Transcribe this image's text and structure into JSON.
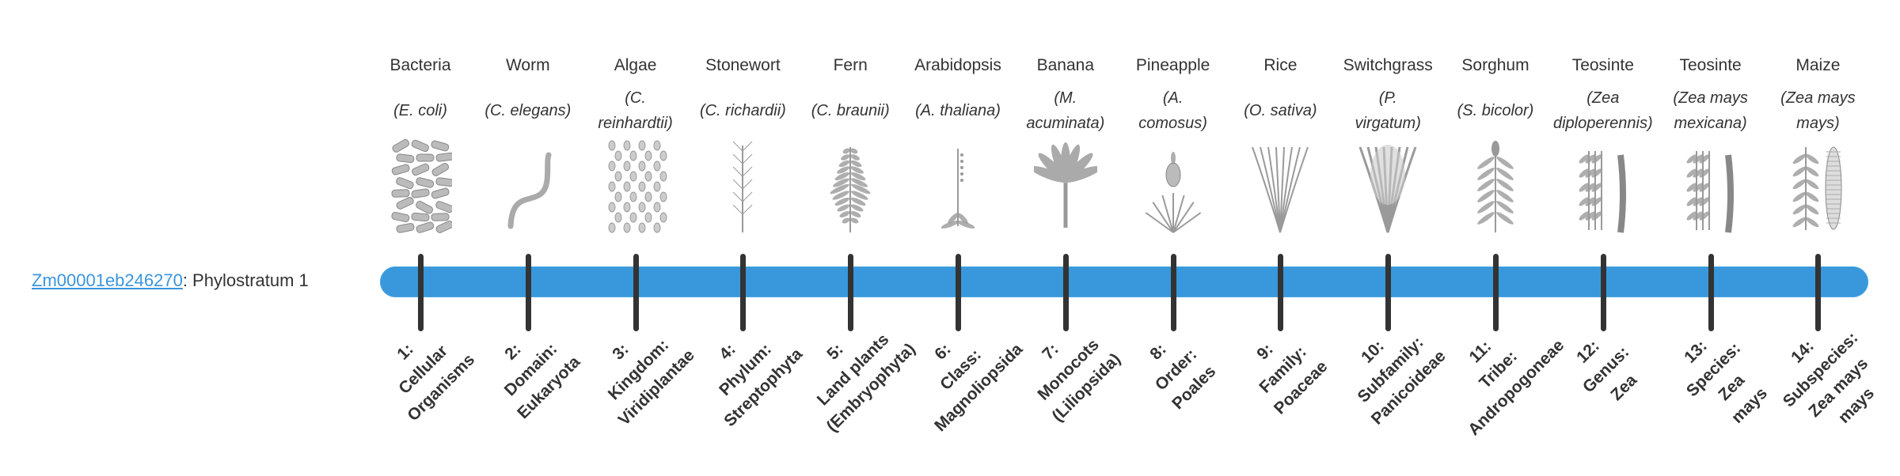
{
  "gene": {
    "id_link": "Zm00001eb246270",
    "suffix": ": Phylostratum 1"
  },
  "colors": {
    "bar": "#3898db",
    "tick": "#333333",
    "link": "#3a95dc",
    "illustration": "#9a9a9a"
  },
  "organisms": [
    {
      "name": "Bacteria",
      "sci": [
        "(E. coli)"
      ],
      "icon": "bacteria-icon"
    },
    {
      "name": "Worm",
      "sci": [
        "(C. elegans)"
      ],
      "icon": "worm-icon"
    },
    {
      "name": "Algae",
      "sci": [
        "(C.",
        "reinhardtii)"
      ],
      "icon": "algae-icon"
    },
    {
      "name": "Stonewort",
      "sci": [
        "(C. richardii)"
      ],
      "icon": "stonewort-icon"
    },
    {
      "name": "Fern",
      "sci": [
        "(C. braunii)"
      ],
      "icon": "fern-icon"
    },
    {
      "name": "Arabidopsis",
      "sci": [
        "(A. thaliana)"
      ],
      "icon": "arabidopsis-icon"
    },
    {
      "name": "Banana",
      "sci": [
        "(M.",
        "acuminata)"
      ],
      "icon": "banana-icon"
    },
    {
      "name": "Pineapple",
      "sci": [
        "(A.",
        "comosus)"
      ],
      "icon": "pineapple-icon"
    },
    {
      "name": "Rice",
      "sci": [
        "(O. sativa)"
      ],
      "icon": "rice-icon"
    },
    {
      "name": "Switchgrass",
      "sci": [
        "(P.",
        "virgatum)"
      ],
      "icon": "switchgrass-icon"
    },
    {
      "name": "Sorghum",
      "sci": [
        "(S. bicolor)"
      ],
      "icon": "sorghum-icon"
    },
    {
      "name": "Teosinte",
      "sci": [
        "(Zea",
        "diploperennis)"
      ],
      "icon": "teosinte-icon"
    },
    {
      "name": "Teosinte",
      "sci": [
        "(Zea mays",
        "mexicana)"
      ],
      "icon": "teosinte-icon"
    },
    {
      "name": "Maize",
      "sci": [
        "(Zea mays",
        "mays)"
      ],
      "icon": "maize-icon"
    }
  ],
  "strata": [
    {
      "lines": [
        "1:",
        "Cellular",
        "Organisms"
      ]
    },
    {
      "lines": [
        "2:",
        "Domain:",
        "Eukaryota"
      ]
    },
    {
      "lines": [
        "3:",
        "Kingdom:",
        "Viridiplantae"
      ]
    },
    {
      "lines": [
        "4:",
        "Phylum:",
        "Streptophyta"
      ]
    },
    {
      "lines": [
        "5:",
        "Land plants",
        "(Embryophyta)"
      ]
    },
    {
      "lines": [
        "6:",
        "Class:",
        "Magnoliopsida"
      ]
    },
    {
      "lines": [
        "7:",
        "Monocots",
        "(Liliopsida)"
      ]
    },
    {
      "lines": [
        "8:",
        "Order:",
        "Poales"
      ]
    },
    {
      "lines": [
        "9:",
        "Family:",
        "Poaceae"
      ]
    },
    {
      "lines": [
        "10:",
        "Subfamily:",
        "Panicoideae"
      ]
    },
    {
      "lines": [
        "11:",
        "Tribe:",
        "Andropogoneae"
      ]
    },
    {
      "lines": [
        "12:",
        "Genus:",
        "Zea"
      ]
    },
    {
      "lines": [
        "13:",
        "Species:",
        "Zea",
        "mays"
      ]
    },
    {
      "lines": [
        "14:",
        "Subspecies:",
        "Zea mays",
        "mays"
      ]
    }
  ]
}
